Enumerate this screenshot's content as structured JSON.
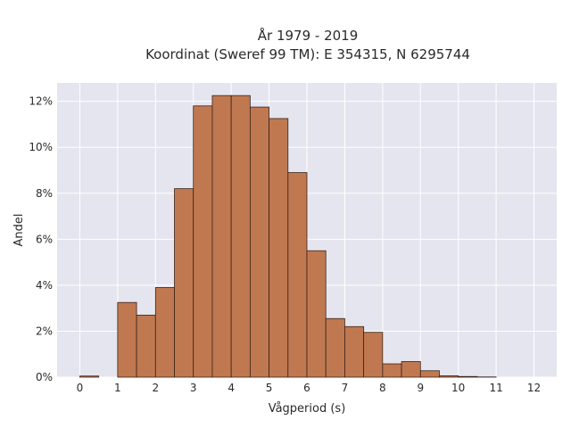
{
  "chart_data": {
    "type": "bar",
    "title": "År 1979 - 2019",
    "subtitle": "Koordinat (Sweref 99 TM): E 354315, N 6295744",
    "xlabel": "Vågperiod (s)",
    "ylabel": "Andel",
    "xlim": [
      -0.6,
      12.6
    ],
    "ylim": [
      0,
      12.8
    ],
    "x_ticks": [
      0,
      1,
      2,
      3,
      4,
      5,
      6,
      7,
      8,
      9,
      10,
      11,
      12
    ],
    "y_ticks": [
      0,
      2,
      4,
      6,
      8,
      10,
      12
    ],
    "y_tick_labels": [
      "0%",
      "2%",
      "4%",
      "6%",
      "8%",
      "10%",
      "12%"
    ],
    "bin_width": 0.5,
    "bins": [
      {
        "x0": 0.0,
        "x1": 0.5,
        "value": 0.05
      },
      {
        "x0": 0.5,
        "x1": 1.0,
        "value": 0.0
      },
      {
        "x0": 1.0,
        "x1": 1.5,
        "value": 3.25
      },
      {
        "x0": 1.5,
        "x1": 2.0,
        "value": 2.7
      },
      {
        "x0": 2.0,
        "x1": 2.5,
        "value": 3.9
      },
      {
        "x0": 2.5,
        "x1": 3.0,
        "value": 8.2
      },
      {
        "x0": 3.0,
        "x1": 3.5,
        "value": 11.8
      },
      {
        "x0": 3.5,
        "x1": 4.0,
        "value": 12.25
      },
      {
        "x0": 4.0,
        "x1": 4.5,
        "value": 12.25
      },
      {
        "x0": 4.5,
        "x1": 5.0,
        "value": 11.75
      },
      {
        "x0": 5.0,
        "x1": 5.5,
        "value": 11.25
      },
      {
        "x0": 5.5,
        "x1": 6.0,
        "value": 8.9
      },
      {
        "x0": 6.0,
        "x1": 6.5,
        "value": 5.5
      },
      {
        "x0": 6.5,
        "x1": 7.0,
        "value": 2.55
      },
      {
        "x0": 7.0,
        "x1": 7.5,
        "value": 2.2
      },
      {
        "x0": 7.5,
        "x1": 8.0,
        "value": 1.95
      },
      {
        "x0": 8.0,
        "x1": 8.5,
        "value": 0.58
      },
      {
        "x0": 8.5,
        "x1": 9.0,
        "value": 0.68
      },
      {
        "x0": 9.0,
        "x1": 9.5,
        "value": 0.28
      },
      {
        "x0": 9.5,
        "x1": 10.0,
        "value": 0.06
      },
      {
        "x0": 10.0,
        "x1": 10.5,
        "value": 0.03
      },
      {
        "x0": 10.5,
        "x1": 11.0,
        "value": 0.01
      }
    ],
    "grid": true,
    "colors": {
      "bar_fill": "#c07850",
      "bar_stroke": "#3a2418",
      "plot_background": "#e5e5ef",
      "grid": "#ffffff"
    }
  }
}
